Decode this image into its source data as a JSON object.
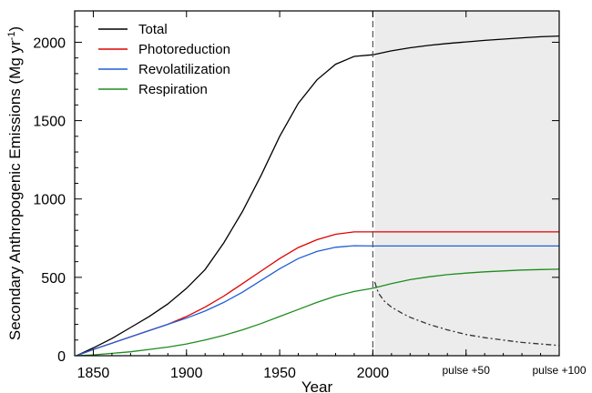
{
  "chart_data": {
    "type": "line",
    "title": "",
    "xlabel": "Year",
    "ylabel": "Secondary Anthropogenic Emissions (Mg yr",
    "ylabel_sup": "-1",
    "ylabel_tail": ")",
    "xlim": [
      1840,
      2100
    ],
    "ylim": [
      0,
      2200
    ],
    "x_ticks": [
      {
        "value": 1850,
        "label": "1850"
      },
      {
        "value": 1900,
        "label": "1900"
      },
      {
        "value": 1950,
        "label": "1950"
      },
      {
        "value": 2000,
        "label": "2000"
      },
      {
        "value": 2050,
        "label": "pulse +50"
      },
      {
        "value": 2100,
        "label": "pulse +100"
      }
    ],
    "y_ticks": [
      {
        "value": 0,
        "label": "0"
      },
      {
        "value": 500,
        "label": "500"
      },
      {
        "value": 1000,
        "label": "1000"
      },
      {
        "value": 1500,
        "label": "1500"
      },
      {
        "value": 2000,
        "label": "2000"
      }
    ],
    "shaded_region": {
      "x_start": 2001,
      "x_end": 2100,
      "color": "#ececec"
    },
    "pulse_line": {
      "x": 2000,
      "color": "#555555"
    },
    "grid": false,
    "legend_placement": "top-left",
    "series": [
      {
        "name": "Total",
        "color": "#000000",
        "x": [
          1841,
          1850,
          1860,
          1870,
          1880,
          1890,
          1900,
          1910,
          1920,
          1930,
          1940,
          1950,
          1960,
          1970,
          1980,
          1990,
          2000,
          2010,
          2020,
          2030,
          2040,
          2050,
          2060,
          2070,
          2080,
          2090,
          2100
        ],
        "values": [
          0,
          50,
          110,
          180,
          250,
          330,
          430,
          550,
          720,
          920,
          1150,
          1400,
          1610,
          1760,
          1860,
          1910,
          1920,
          1945,
          1965,
          1980,
          1992,
          2002,
          2012,
          2020,
          2028,
          2035,
          2040
        ]
      },
      {
        "name": "Photoreduction",
        "color": "#e00000",
        "x": [
          1841,
          1850,
          1860,
          1870,
          1880,
          1890,
          1900,
          1910,
          1920,
          1930,
          1940,
          1950,
          1960,
          1970,
          1980,
          1990,
          2000,
          2010,
          2020,
          2030,
          2040,
          2050,
          2060,
          2070,
          2080,
          2090,
          2100
        ],
        "values": [
          0,
          40,
          80,
          120,
          160,
          200,
          250,
          310,
          380,
          460,
          540,
          620,
          690,
          740,
          775,
          790,
          790,
          790,
          790,
          790,
          790,
          790,
          790,
          790,
          790,
          790,
          790
        ]
      },
      {
        "name": "Revolatilization",
        "color": "#1f5fd6",
        "x": [
          1841,
          1850,
          1860,
          1870,
          1880,
          1890,
          1900,
          1910,
          1920,
          1930,
          1940,
          1950,
          1960,
          1970,
          1980,
          1990,
          2000,
          2010,
          2020,
          2030,
          2040,
          2050,
          2060,
          2070,
          2080,
          2090,
          2100
        ],
        "values": [
          0,
          40,
          80,
          120,
          160,
          200,
          240,
          285,
          340,
          405,
          480,
          555,
          620,
          665,
          692,
          702,
          700,
          700,
          700,
          700,
          700,
          700,
          700,
          700,
          700,
          700,
          700
        ]
      },
      {
        "name": "Respiration",
        "color": "#1e8c1e",
        "x": [
          1841,
          1850,
          1860,
          1870,
          1880,
          1890,
          1900,
          1910,
          1920,
          1930,
          1940,
          1950,
          1960,
          1970,
          1980,
          1990,
          2000,
          2010,
          2020,
          2030,
          2040,
          2050,
          2060,
          2070,
          2080,
          2090,
          2100
        ],
        "values": [
          0,
          5,
          15,
          25,
          40,
          55,
          75,
          100,
          130,
          165,
          205,
          250,
          295,
          340,
          380,
          410,
          430,
          460,
          485,
          503,
          517,
          527,
          535,
          541,
          547,
          550,
          552
        ]
      },
      {
        "name": "",
        "color": "#333333",
        "dash": "6,3,2,3",
        "x": [
          2001,
          2003,
          2006,
          2010,
          2015,
          2020,
          2030,
          2040,
          2050,
          2060,
          2070,
          2080,
          2090,
          2100
        ],
        "values": [
          470,
          400,
          350,
          310,
          275,
          245,
          200,
          165,
          135,
          115,
          100,
          85,
          75,
          65
        ]
      }
    ]
  }
}
